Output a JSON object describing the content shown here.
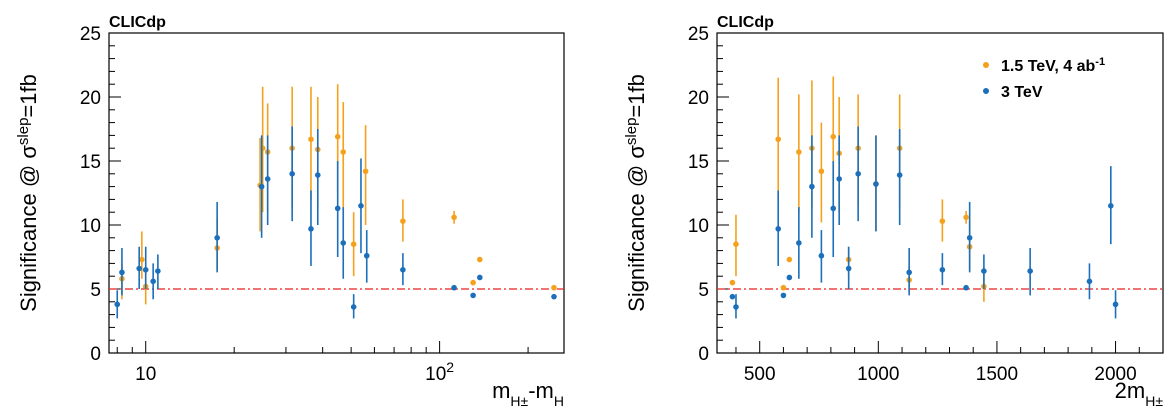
{
  "chart_data": [
    {
      "type": "scatter",
      "tag": "CLICdp",
      "ylabel": "Significance @ σ^slep=1fb",
      "xlabel": "m_H±-m_H",
      "xscale": "log",
      "xlim": [
        7.5,
        265
      ],
      "ylim": [
        0,
        25
      ],
      "xticks": [
        {
          "value": 10,
          "label": "10"
        },
        {
          "value": 100,
          "label": "10^2"
        }
      ],
      "yticks": [
        0,
        5,
        10,
        15,
        20,
        25
      ],
      "reference_line": 5,
      "series": [
        {
          "name": "1.5 TeV, 4 ab-1",
          "color": "#f5a11c",
          "points": [
            {
              "x": 8.3,
              "y": 5.8,
              "lo": 4.2,
              "hi": 7.0
            },
            {
              "x": 9.7,
              "y": 7.3,
              "lo": 5.8,
              "hi": 9.5
            },
            {
              "x": 10.0,
              "y": 5.2,
              "lo": 3.8,
              "hi": 6.5
            },
            {
              "x": 17.5,
              "y": 8.2,
              "lo": 6.5,
              "hi": 10.5
            },
            {
              "x": 24.5,
              "y": 13.1,
              "lo": 9.5,
              "hi": 16.8
            },
            {
              "x": 25.0,
              "y": 16.0,
              "lo": 11.0,
              "hi": 20.8
            },
            {
              "x": 26.0,
              "y": 15.7,
              "lo": 11.0,
              "hi": 19.5
            },
            {
              "x": 31.5,
              "y": 16.0,
              "lo": 11.3,
              "hi": 20.8
            },
            {
              "x": 36.5,
              "y": 16.7,
              "lo": 12.0,
              "hi": 20.8
            },
            {
              "x": 38.5,
              "y": 15.9,
              "lo": 11.3,
              "hi": 20.0
            },
            {
              "x": 45.0,
              "y": 16.9,
              "lo": 12.5,
              "hi": 21.0
            },
            {
              "x": 47.0,
              "y": 15.7,
              "lo": 11.2,
              "hi": 19.6
            },
            {
              "x": 51.0,
              "y": 8.5,
              "lo": 6.0,
              "hi": 11.0
            },
            {
              "x": 56.0,
              "y": 14.2,
              "lo": 10.0,
              "hi": 17.8
            },
            {
              "x": 75.0,
              "y": 10.3,
              "lo": 8.7,
              "hi": 12.0
            },
            {
              "x": 112.0,
              "y": 10.6,
              "lo": 10.1,
              "hi": 11.1
            },
            {
              "x": 130.0,
              "y": 5.5,
              "lo": 5.5,
              "hi": 5.5
            },
            {
              "x": 137.0,
              "y": 7.3,
              "lo": 7.3,
              "hi": 7.3
            },
            {
              "x": 245.0,
              "y": 5.1,
              "lo": 5.1,
              "hi": 5.1
            }
          ]
        },
        {
          "name": "3 TeV",
          "color": "#1c6fba",
          "points": [
            {
              "x": 8.0,
              "y": 3.8,
              "lo": 2.7,
              "hi": 4.9
            },
            {
              "x": 8.3,
              "y": 6.3,
              "lo": 4.5,
              "hi": 8.2
            },
            {
              "x": 9.5,
              "y": 6.6,
              "lo": 5.0,
              "hi": 8.3
            },
            {
              "x": 10.0,
              "y": 6.5,
              "lo": 5.0,
              "hi": 8.3
            },
            {
              "x": 10.6,
              "y": 5.6,
              "lo": 4.2,
              "hi": 7.0
            },
            {
              "x": 11.0,
              "y": 6.4,
              "lo": 5.0,
              "hi": 7.7
            },
            {
              "x": 17.5,
              "y": 9.0,
              "lo": 6.3,
              "hi": 11.8
            },
            {
              "x": 24.8,
              "y": 13.0,
              "lo": 9.0,
              "hi": 17.0
            },
            {
              "x": 26.0,
              "y": 13.6,
              "lo": 10.0,
              "hi": 17.0
            },
            {
              "x": 31.5,
              "y": 14.0,
              "lo": 10.3,
              "hi": 17.7
            },
            {
              "x": 36.5,
              "y": 9.7,
              "lo": 6.8,
              "hi": 12.7
            },
            {
              "x": 38.5,
              "y": 13.9,
              "lo": 10.0,
              "hi": 17.5
            },
            {
              "x": 45.0,
              "y": 11.3,
              "lo": 7.5,
              "hi": 15.0
            },
            {
              "x": 47.0,
              "y": 8.6,
              "lo": 5.8,
              "hi": 11.4
            },
            {
              "x": 51.0,
              "y": 3.6,
              "lo": 2.7,
              "hi": 4.6
            },
            {
              "x": 54.0,
              "y": 11.5,
              "lo": 7.8,
              "hi": 15.2
            },
            {
              "x": 56.5,
              "y": 7.6,
              "lo": 5.5,
              "hi": 9.6
            },
            {
              "x": 75.0,
              "y": 6.5,
              "lo": 5.3,
              "hi": 7.8
            },
            {
              "x": 112.0,
              "y": 5.1,
              "lo": 5.1,
              "hi": 5.1
            },
            {
              "x": 130.0,
              "y": 4.5,
              "lo": 4.5,
              "hi": 4.5
            },
            {
              "x": 137.0,
              "y": 5.9,
              "lo": 5.9,
              "hi": 5.9
            },
            {
              "x": 245.0,
              "y": 4.4,
              "lo": 4.4,
              "hi": 4.4
            }
          ]
        }
      ]
    },
    {
      "type": "scatter",
      "tag": "CLICdp",
      "ylabel": "Significance @ σ^slep=1fb",
      "xlabel": "2m_H±",
      "xscale": "linear",
      "xlim": [
        320,
        2200
      ],
      "ylim": [
        0,
        25
      ],
      "xticks": [
        {
          "value": 500,
          "label": "500"
        },
        {
          "value": 1000,
          "label": "1000"
        },
        {
          "value": 1500,
          "label": "1500"
        },
        {
          "value": 2000,
          "label": "2000"
        }
      ],
      "yticks": [
        0,
        5,
        10,
        15,
        20,
        25
      ],
      "reference_line": 5,
      "legend": {
        "position": "top-right",
        "entries": [
          "1.5 TeV, 4 ab-1",
          "3 TeV"
        ]
      },
      "series": [
        {
          "name": "1.5 TeV, 4 ab-1",
          "color": "#f5a11c",
          "points": [
            {
              "x": 385,
              "y": 5.5,
              "lo": 5.5,
              "hi": 5.5
            },
            {
              "x": 400,
              "y": 8.5,
              "lo": 6.0,
              "hi": 10.8
            },
            {
              "x": 578,
              "y": 16.7,
              "lo": 12.0,
              "hi": 21.5
            },
            {
              "x": 600,
              "y": 5.1,
              "lo": 5.1,
              "hi": 5.1
            },
            {
              "x": 625,
              "y": 7.3,
              "lo": 7.3,
              "hi": 7.3
            },
            {
              "x": 665,
              "y": 15.7,
              "lo": 11.0,
              "hi": 20.2
            },
            {
              "x": 720,
              "y": 16.0,
              "lo": 11.3,
              "hi": 21.3
            },
            {
              "x": 760,
              "y": 14.2,
              "lo": 10.2,
              "hi": 18.0
            },
            {
              "x": 810,
              "y": 16.9,
              "lo": 12.0,
              "hi": 21.6
            },
            {
              "x": 835,
              "y": 15.6,
              "lo": 11.0,
              "hi": 20.0
            },
            {
              "x": 875,
              "y": 7.3,
              "lo": 6.0,
              "hi": 8.3
            },
            {
              "x": 915,
              "y": 16.0,
              "lo": 11.5,
              "hi": 20.2
            },
            {
              "x": 990,
              "y": 13.2,
              "lo": 9.5,
              "hi": 17.0
            },
            {
              "x": 1090,
              "y": 16.0,
              "lo": 11.3,
              "hi": 20.2
            },
            {
              "x": 1130,
              "y": 5.7,
              "lo": 4.7,
              "hi": 6.7
            },
            {
              "x": 1270,
              "y": 10.3,
              "lo": 8.7,
              "hi": 12.0
            },
            {
              "x": 1370,
              "y": 10.6,
              "lo": 10.1,
              "hi": 11.1
            },
            {
              "x": 1385,
              "y": 8.3,
              "lo": 6.5,
              "hi": 10.3
            },
            {
              "x": 1445,
              "y": 5.2,
              "lo": 4.0,
              "hi": 6.5
            }
          ]
        },
        {
          "name": "3 TeV",
          "color": "#1c6fba",
          "points": [
            {
              "x": 385,
              "y": 4.4,
              "lo": 4.4,
              "hi": 4.4
            },
            {
              "x": 400,
              "y": 3.6,
              "lo": 2.7,
              "hi": 4.6
            },
            {
              "x": 578,
              "y": 9.7,
              "lo": 6.8,
              "hi": 12.7
            },
            {
              "x": 600,
              "y": 4.5,
              "lo": 4.5,
              "hi": 4.5
            },
            {
              "x": 625,
              "y": 5.9,
              "lo": 5.9,
              "hi": 5.9
            },
            {
              "x": 665,
              "y": 8.6,
              "lo": 5.8,
              "hi": 11.4
            },
            {
              "x": 720,
              "y": 13.0,
              "lo": 9.0,
              "hi": 17.0
            },
            {
              "x": 760,
              "y": 7.6,
              "lo": 5.5,
              "hi": 9.6
            },
            {
              "x": 810,
              "y": 11.3,
              "lo": 7.5,
              "hi": 15.0
            },
            {
              "x": 835,
              "y": 13.6,
              "lo": 10.0,
              "hi": 17.0
            },
            {
              "x": 875,
              "y": 6.6,
              "lo": 5.0,
              "hi": 8.3
            },
            {
              "x": 915,
              "y": 14.0,
              "lo": 10.3,
              "hi": 17.7
            },
            {
              "x": 990,
              "y": 13.2,
              "lo": 9.5,
              "hi": 17.0
            },
            {
              "x": 1090,
              "y": 13.9,
              "lo": 10.0,
              "hi": 17.5
            },
            {
              "x": 1130,
              "y": 6.3,
              "lo": 4.5,
              "hi": 8.2
            },
            {
              "x": 1270,
              "y": 6.5,
              "lo": 5.3,
              "hi": 7.8
            },
            {
              "x": 1370,
              "y": 5.1,
              "lo": 5.1,
              "hi": 5.1
            },
            {
              "x": 1385,
              "y": 9.0,
              "lo": 6.3,
              "hi": 11.8
            },
            {
              "x": 1445,
              "y": 6.4,
              "lo": 5.0,
              "hi": 7.7
            },
            {
              "x": 1640,
              "y": 6.4,
              "lo": 4.5,
              "hi": 8.2
            },
            {
              "x": 1890,
              "y": 5.6,
              "lo": 4.2,
              "hi": 7.0
            },
            {
              "x": 1980,
              "y": 11.5,
              "lo": 8.5,
              "hi": 14.6
            },
            {
              "x": 2000,
              "y": 3.8,
              "lo": 2.7,
              "hi": 4.9
            }
          ]
        }
      ]
    }
  ]
}
